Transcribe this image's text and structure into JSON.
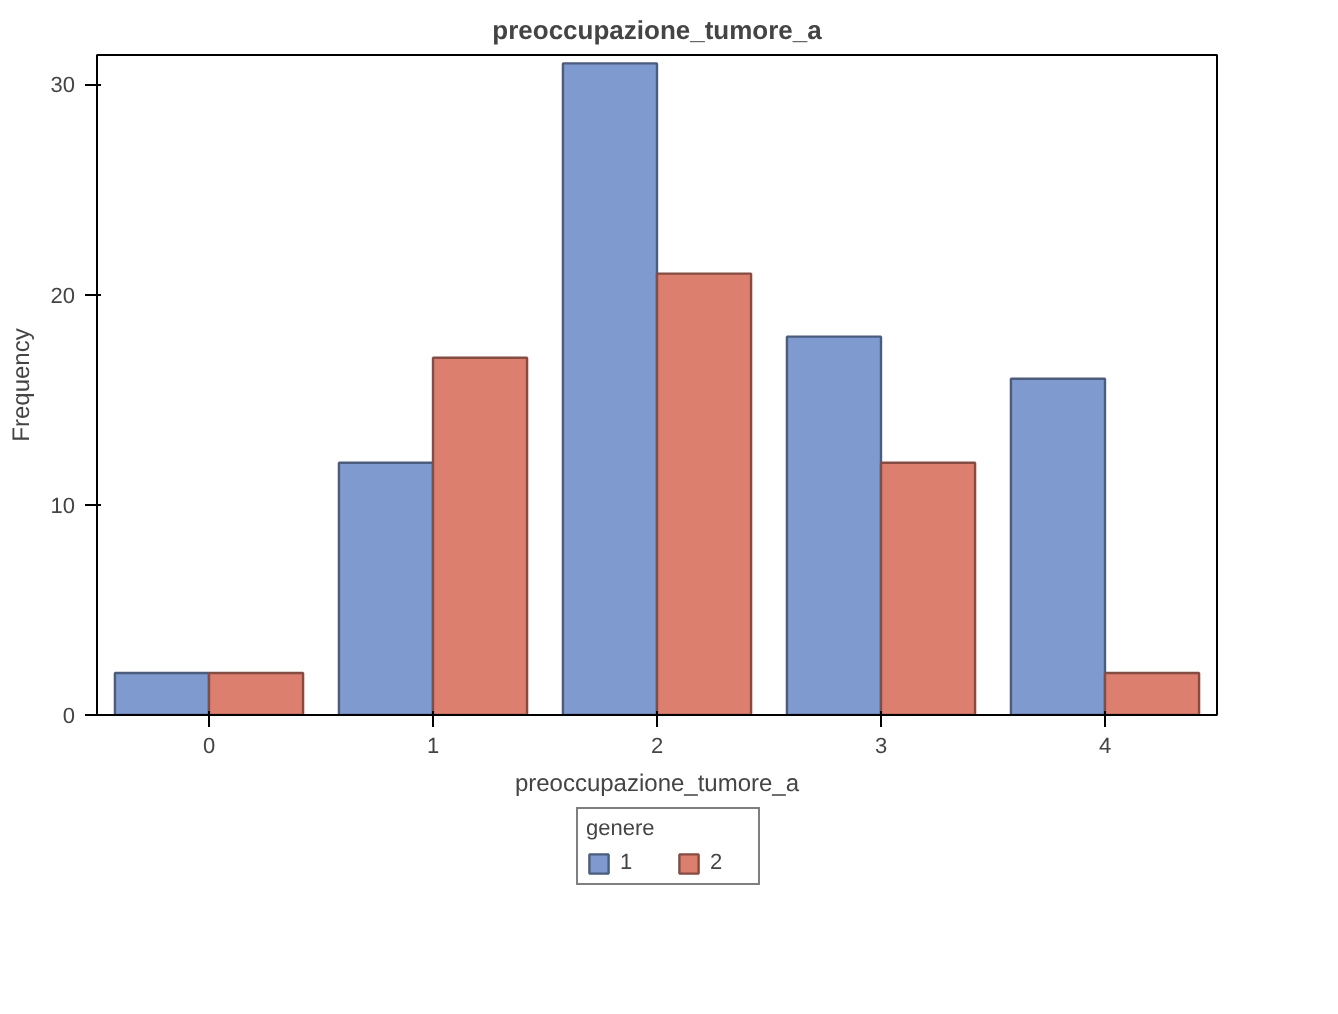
{
  "chart_data": {
    "type": "bar",
    "title": "preoccupazione_tumore_a",
    "xlabel": "preoccupazione_tumore_a",
    "ylabel": "Frequency",
    "legend_title": "genere",
    "categories": [
      "0",
      "1",
      "2",
      "3",
      "4"
    ],
    "series": [
      {
        "name": "1",
        "color": "#7f9acf",
        "values": [
          2,
          12,
          31,
          18,
          16
        ]
      },
      {
        "name": "2",
        "color": "#dd7f6f",
        "values": [
          2,
          17,
          21,
          12,
          2
        ]
      }
    ],
    "ylim": [
      0,
      31.4
    ],
    "yticks": [
      0,
      10,
      20,
      30
    ],
    "grid": false,
    "legend": "bottom"
  }
}
